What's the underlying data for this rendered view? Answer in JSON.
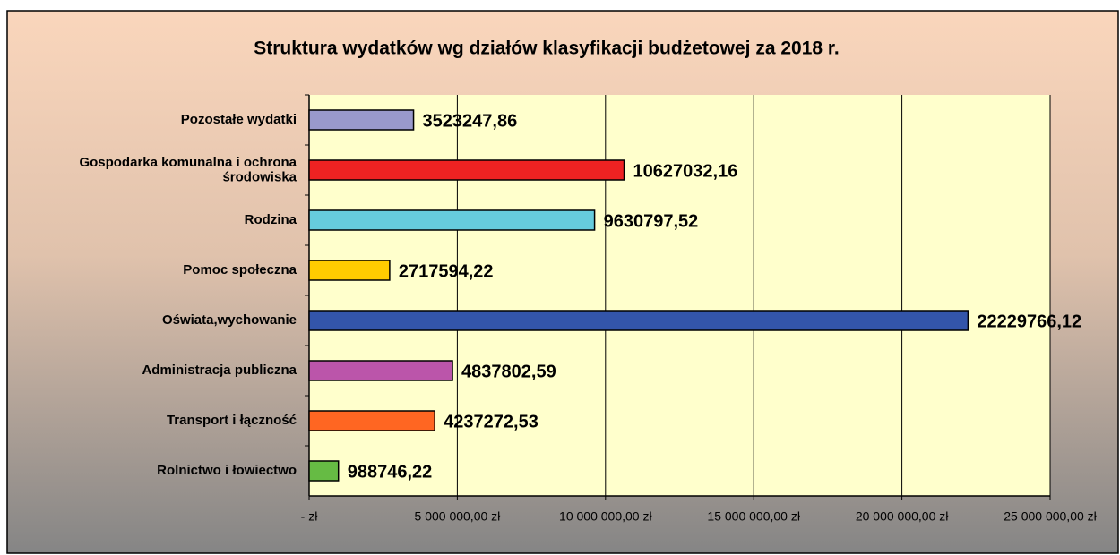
{
  "chart_data": {
    "type": "bar",
    "orientation": "horizontal",
    "title": "Struktura wydatków wg działów klasyfikacji budżetowej za 2018 r.",
    "categories": [
      "Pozostałe wydatki",
      "Gospodarka komunalna i ochrona\nśrodowiska",
      "Rodzina",
      "Pomoc społeczna",
      "Oświata,wychowanie",
      "Administracja publiczna",
      "Transport i łączność",
      "Rolnictwo i łowiectwo"
    ],
    "values": [
      3523247.86,
      10627032.16,
      9630797.52,
      2717594.22,
      22229766.12,
      4837802.59,
      4237272.53,
      988746.22
    ],
    "value_labels": [
      "3523247,86",
      "10627032,16",
      "9630797,52",
      "2717594,22",
      "22229766,12",
      "4837802,59",
      "4237272,53",
      "988746,22"
    ],
    "colors": [
      "#9999cc",
      "#ee2222",
      "#66ccdd",
      "#ffcc00",
      "#3355aa",
      "#bb55aa",
      "#ff6622",
      "#66bb44"
    ],
    "xlim": [
      0,
      25000000
    ],
    "xticks": [
      {
        "value": 0,
        "label": "-   zł"
      },
      {
        "value": 5000000,
        "label": "5 000 000,00 zł"
      },
      {
        "value": 10000000,
        "label": "10 000 000,00 zł"
      },
      {
        "value": 15000000,
        "label": "15 000 000,00 zł"
      },
      {
        "value": 20000000,
        "label": "20 000 000,00 zł"
      },
      {
        "value": 25000000,
        "label": "25 000 000,00 zł"
      }
    ],
    "grid": true
  }
}
